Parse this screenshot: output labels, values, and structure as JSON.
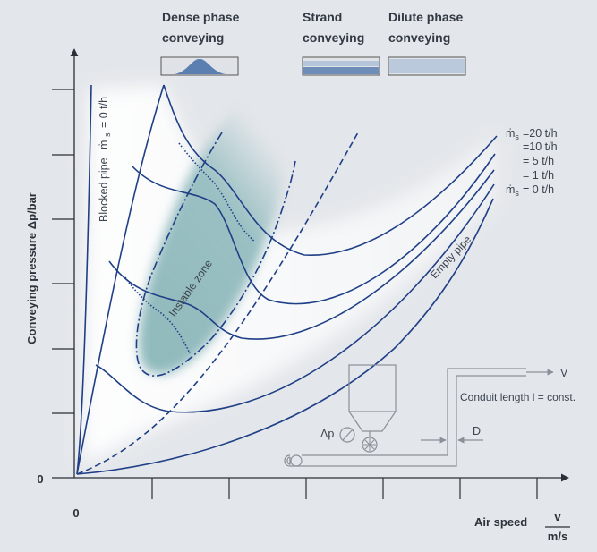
{
  "phases": {
    "dense": {
      "line1": "Dense phase",
      "line2": "conveying"
    },
    "strand": {
      "line1": "Strand",
      "line2": "conveying"
    },
    "dilute": {
      "line1": "Dilute phase",
      "line2": "conveying"
    }
  },
  "axes": {
    "y_label": "Conveying pressure Δp/bar",
    "x_label": "Air speed",
    "x_unit_num": "v",
    "x_unit_den": "m/s",
    "y_origin": "0",
    "x_origin": "0"
  },
  "labels": {
    "blocked_pipe": "Blocked pipe",
    "blocked_pipe_flow": "ṁ",
    "blocked_pipe_sub": "s",
    "blocked_pipe_value": "= 0 t/h",
    "instable_zone": "Instable zone",
    "empty_pipe": "Empty pipe"
  },
  "mass_flows": [
    {
      "prefix": "ṁ",
      "sub": "s",
      "text": "=20  t/h"
    },
    {
      "prefix": "",
      "sub": "",
      "text": "=10  t/h"
    },
    {
      "prefix": "",
      "sub": "",
      "text": "=  5  t/h"
    },
    {
      "prefix": "",
      "sub": "",
      "text": "=  1  t/h"
    },
    {
      "prefix": "ṁ",
      "sub": "s",
      "text": "=  0  t/h"
    }
  ],
  "schematic": {
    "velocity": "V",
    "conduit": "Conduit length l = const.",
    "pressure": "Δp",
    "diameter": "D"
  },
  "colors": {
    "curve": "#1f3f86",
    "zone": "#8fb9bc",
    "background": "#e3e6ea"
  }
}
